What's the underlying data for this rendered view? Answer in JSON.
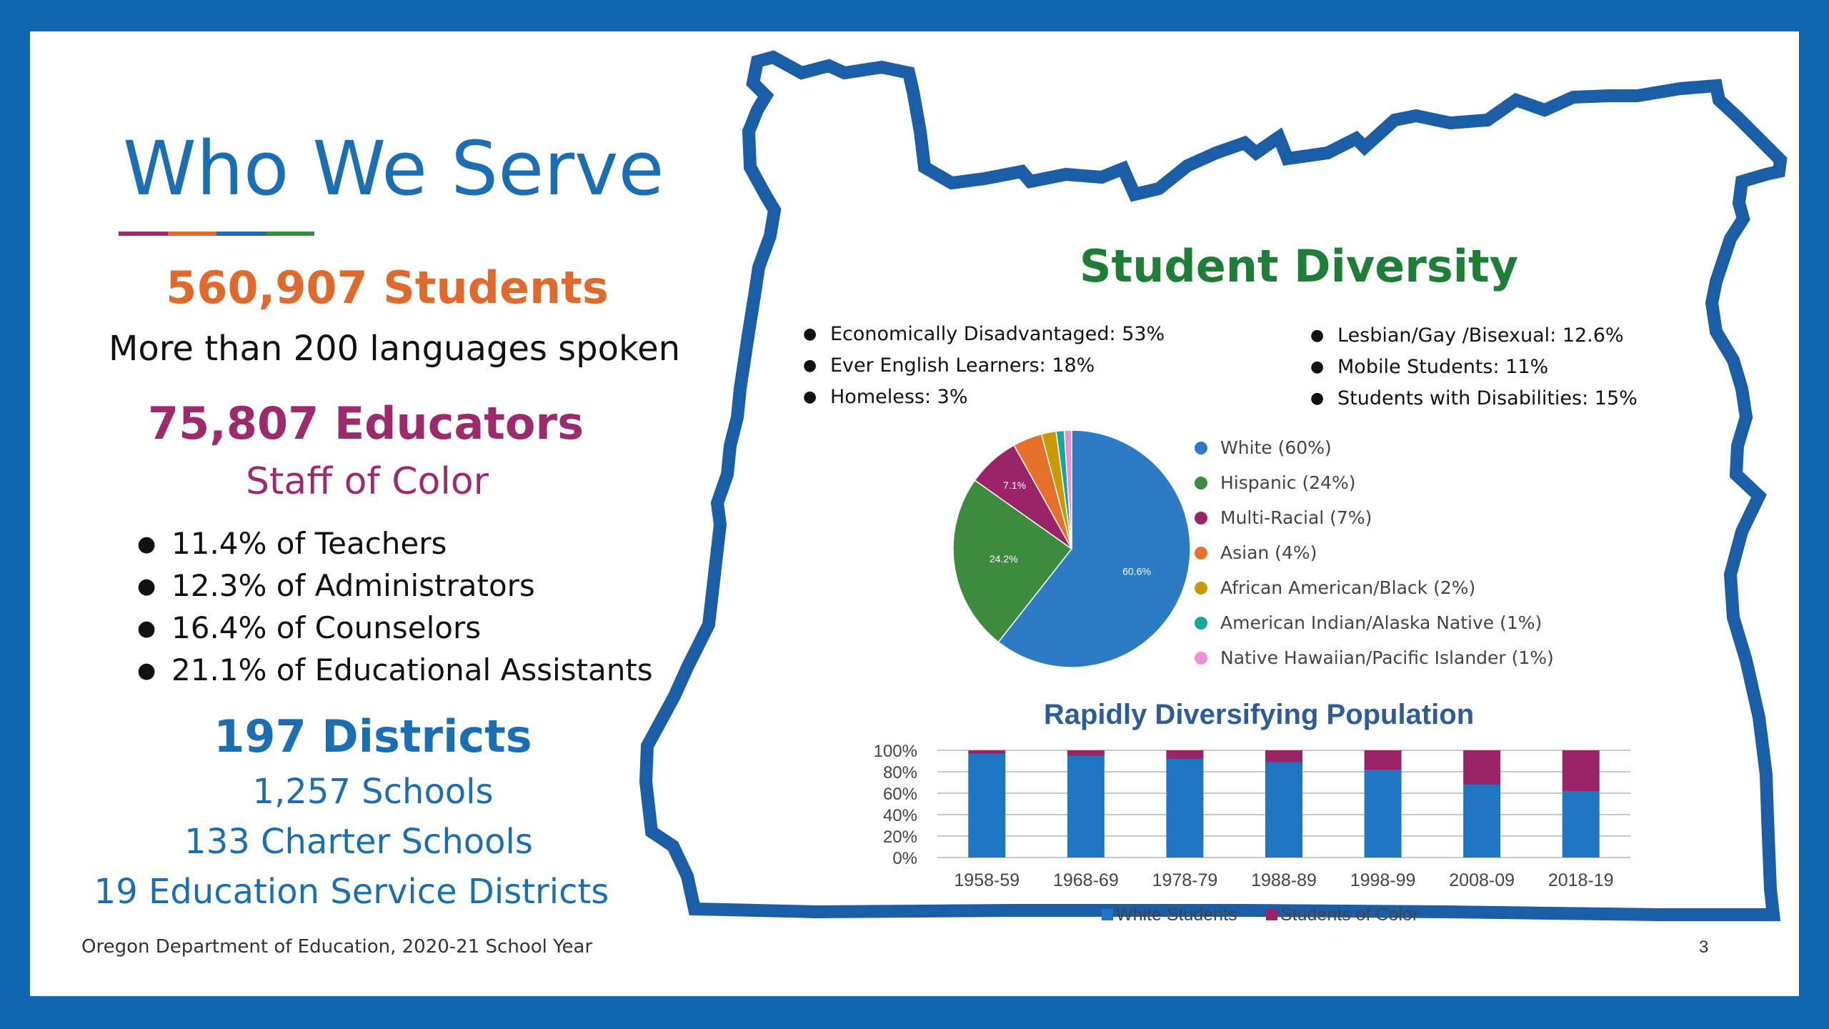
{
  "left": {
    "title": "Who We Serve",
    "accent_colors": [
      "#9e2a6e",
      "#e0692c",
      "#1a6fb4",
      "#3a8a3c"
    ],
    "students_headline": "560,907 Students",
    "languages_line": "More than 200 languages spoken",
    "educators_headline": "75,807 Educators",
    "staff_heading": "Staff of Color",
    "staff_items": [
      "11.4% of Teachers",
      "12.3% of Administrators",
      "16.4% of Counselors",
      "21.1% of Educational Assistants"
    ],
    "districts_headline": "197 Districts",
    "schools_line": "1,257 Schools",
    "charter_line": "133 Charter Schools",
    "esd_line": "19 Education Service Districts"
  },
  "footer": {
    "source": "Oregon Department of Education, 2020-21 School Year",
    "page_number": "3"
  },
  "diversity": {
    "title": "Student Diversity",
    "bullets_left": [
      "Economically Disadvantaged: 53%",
      "Ever English Learners: 18%",
      "Homeless: 3%"
    ],
    "bullets_right": [
      "Lesbian/Gay /Bisexual: 12.6%",
      "Mobile Students: 11%",
      "Students with Disabilities: 15%"
    ],
    "bullet_glyph": "●"
  },
  "colors": {
    "frame": "#1166b0",
    "map_outline": "#1a5ea8",
    "students_orange": "#e0692c",
    "educators_purple": "#9e2a6e",
    "districts_blue": "#1a6fb4",
    "diversity_green": "#1e7d36"
  },
  "chart_data": [
    {
      "type": "pie",
      "slices": [
        {
          "label": "White (60%)",
          "value": 60.6,
          "data_label": "60.6%",
          "color": "#2c7bc4"
        },
        {
          "label": "Hispanic (24%)",
          "value": 24.2,
          "data_label": "24.2%",
          "color": "#3d8b3d"
        },
        {
          "label": "Multi-Racial (7%)",
          "value": 7.1,
          "data_label": "7.1%",
          "color": "#9b2367"
        },
        {
          "label": "Asian (4%)",
          "value": 4.0,
          "data_label": "",
          "color": "#e8712a"
        },
        {
          "label": "African American/Black (2%)",
          "value": 2.0,
          "data_label": "",
          "color": "#c99a06"
        },
        {
          "label": "American Indian/Alaska Native (1%)",
          "value": 1.1,
          "data_label": "",
          "color": "#14a89c"
        },
        {
          "label": "Native Hawaiian/Pacific Islander (1%)",
          "value": 1.0,
          "data_label": "",
          "color": "#f08ed8"
        }
      ],
      "legend_position": "right"
    },
    {
      "type": "bar",
      "stacked": true,
      "title": "Rapidly Diversifying Population",
      "categories": [
        "1958-59",
        "1968-69",
        "1978-79",
        "1988-89",
        "1998-99",
        "2008-09",
        "2018-19"
      ],
      "series": [
        {
          "name": "White Students",
          "values": [
            97,
            95,
            92,
            89,
            82,
            68,
            62
          ],
          "color": "#1f77c4"
        },
        {
          "name": "Students of Color",
          "values": [
            3,
            5,
            8,
            11,
            18,
            32,
            38
          ],
          "color": "#9b2367"
        }
      ],
      "y_ticks": [
        "0%",
        "20%",
        "40%",
        "60%",
        "80%",
        "100%"
      ],
      "ylim": [
        0,
        100
      ],
      "grid": true,
      "legend_position": "bottom"
    }
  ]
}
